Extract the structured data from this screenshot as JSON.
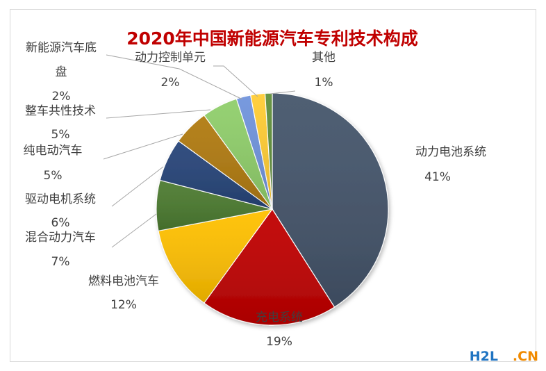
{
  "chart_data": {
    "type": "pie",
    "title": "2020年中国新能源汽车专利技术构成",
    "start_angle_deg": 0,
    "direction": "clockwise",
    "slices": [
      {
        "label": "动力电池系统",
        "value": 41,
        "value_label": "41%",
        "color": "#44546a"
      },
      {
        "label": "充电系统",
        "value": 19,
        "value_label": "19%",
        "color": "#c00000"
      },
      {
        "label": "燃料电池汽车",
        "value": 12,
        "value_label": "12%",
        "color": "#ffc000"
      },
      {
        "label": "混合动力汽车",
        "value": 7,
        "value_label": "7%",
        "color": "#4b7a2f"
      },
      {
        "label": "驱动电机系统",
        "value": 6,
        "value_label": "6%",
        "color": "#264478"
      },
      {
        "label": "纯电动汽车",
        "value": 5,
        "value_label": "5%",
        "color": "#b07a10"
      },
      {
        "label": "整车共性技术",
        "value": 5,
        "value_label": "5%",
        "color": "#8fce6a"
      },
      {
        "label": "新能源汽车底盘",
        "value": 2,
        "value_label": "2%",
        "color": "#6f93dc"
      },
      {
        "label": "动力控制单元",
        "value": 2,
        "value_label": "2%",
        "color": "#ffcc33"
      },
      {
        "label": "其他",
        "value": 1,
        "value_label": "1%",
        "color": "#5f8f3a"
      }
    ]
  },
  "watermark": {
    "brand": "H2L",
    "suffix": ".CN"
  }
}
